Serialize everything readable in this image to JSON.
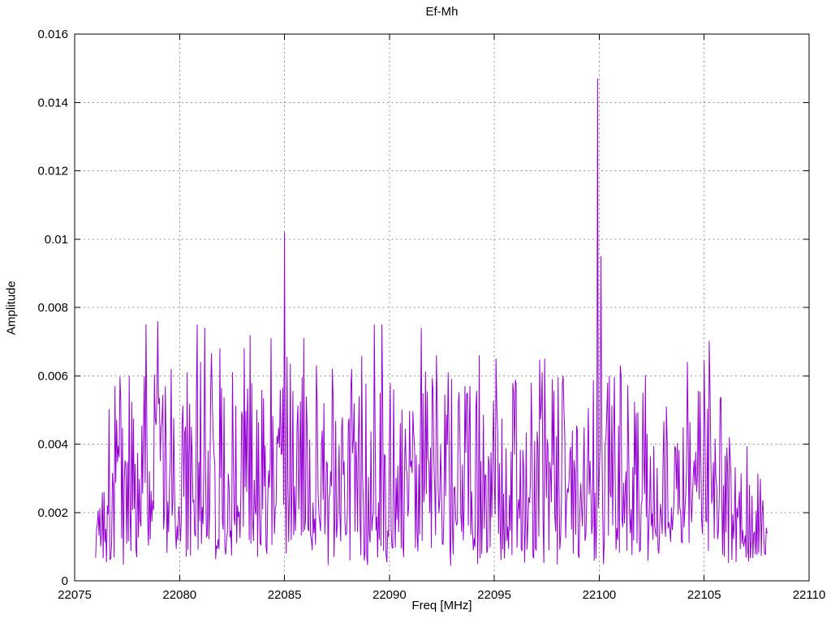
{
  "chart_data": {
    "type": "line",
    "title": "Ef-Mh",
    "xlabel": "Freq [MHz]",
    "ylabel": "Amplitude",
    "xlim": [
      22075,
      22110
    ],
    "ylim": [
      0,
      0.016
    ],
    "x_ticks": [
      22075,
      22080,
      22085,
      22090,
      22095,
      22100,
      22105,
      22110
    ],
    "x_tick_labels": [
      "22075",
      "22080",
      "22085",
      "22090",
      "22095",
      "22100",
      "22105",
      "22110"
    ],
    "y_ticks": [
      0,
      0.002,
      0.004,
      0.006,
      0.008,
      0.01,
      0.012,
      0.014,
      0.016
    ],
    "y_tick_labels": [
      "0",
      "0.002",
      "0.004",
      "0.006",
      "0.008",
      "0.01",
      "0.012",
      "0.014",
      "0.016"
    ],
    "grid": true,
    "legend_position": "none",
    "series_name": "Ef-Mh",
    "series_color": "#9400D3",
    "grid_color": "#979797",
    "border_color": "#000000",
    "data_x_start": 22076.0,
    "data_x_end": 22108.0,
    "sample_step": 0.04,
    "noise": {
      "seed": 1337,
      "floor_min": 0.0004,
      "floor_span": 0.0009,
      "amp_mid": 0.0051,
      "shape_pow": 1.7,
      "spike_prob": 0.02,
      "spike_lo": 0.85,
      "spike_hi": 1.3,
      "spike_cap": 0.0077
    },
    "envelope": [
      [
        22076.0,
        0.38
      ],
      [
        22076.6,
        0.8
      ],
      [
        22077.2,
        1.0
      ],
      [
        22104.0,
        1.0
      ],
      [
        22105.5,
        0.95
      ],
      [
        22106.3,
        0.7
      ],
      [
        22107.0,
        0.55
      ],
      [
        22108.0,
        0.42
      ]
    ],
    "major_peaks": [
      {
        "x": 22085.0,
        "y": 0.0102
      },
      {
        "x": 22099.9,
        "y": 0.0147
      },
      {
        "x": 22100.06,
        "y": 0.0095
      }
    ],
    "notable_spikes": [
      {
        "x": 22076.9,
        "y": 0.0057
      },
      {
        "x": 22077.6,
        "y": 0.006
      },
      {
        "x": 22078.4,
        "y": 0.0075
      },
      {
        "x": 22078.95,
        "y": 0.0076
      },
      {
        "x": 22079.6,
        "y": 0.0062
      },
      {
        "x": 22080.35,
        "y": 0.0061
      },
      {
        "x": 22080.85,
        "y": 0.0075
      },
      {
        "x": 22081.2,
        "y": 0.0074
      },
      {
        "x": 22081.9,
        "y": 0.0068
      },
      {
        "x": 22082.5,
        "y": 0.0061
      },
      {
        "x": 22083.1,
        "y": 0.0068
      },
      {
        "x": 22084.35,
        "y": 0.0071
      },
      {
        "x": 22085.9,
        "y": 0.0071
      },
      {
        "x": 22086.5,
        "y": 0.0063
      },
      {
        "x": 22087.3,
        "y": 0.0062
      },
      {
        "x": 22088.2,
        "y": 0.0062
      },
      {
        "x": 22089.3,
        "y": 0.0075
      },
      {
        "x": 22089.65,
        "y": 0.0075
      },
      {
        "x": 22091.5,
        "y": 0.0074
      },
      {
        "x": 22092.8,
        "y": 0.0061
      },
      {
        "x": 22093.6,
        "y": 0.0057
      },
      {
        "x": 22094.3,
        "y": 0.0066
      },
      {
        "x": 22095.1,
        "y": 0.0065
      },
      {
        "x": 22095.9,
        "y": 0.0055
      },
      {
        "x": 22097.4,
        "y": 0.0065
      },
      {
        "x": 22098.3,
        "y": 0.006
      },
      {
        "x": 22101.0,
        "y": 0.0063
      },
      {
        "x": 22102.1,
        "y": 0.0055
      },
      {
        "x": 22103.2,
        "y": 0.0051
      },
      {
        "x": 22104.2,
        "y": 0.0064
      },
      {
        "x": 22105.3,
        "y": 0.0056
      },
      {
        "x": 22106.2,
        "y": 0.0042
      }
    ]
  }
}
